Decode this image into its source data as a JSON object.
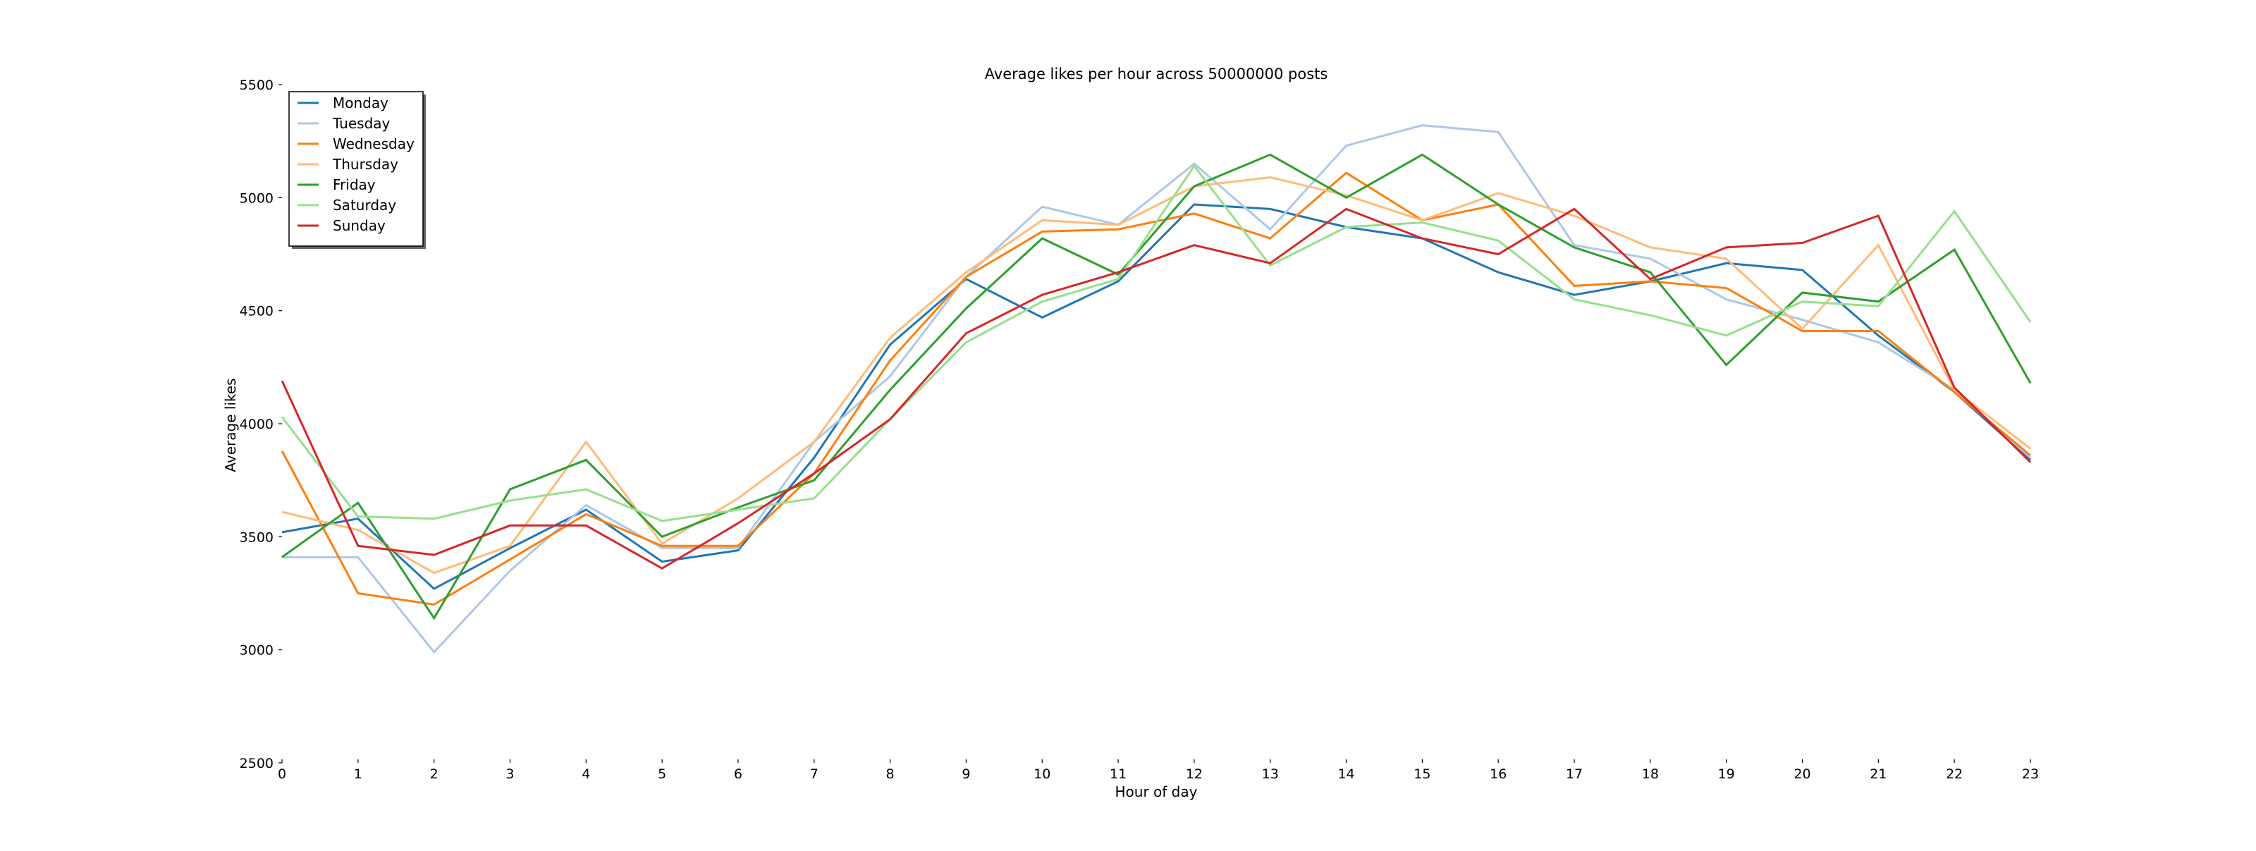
{
  "chart_data": {
    "type": "line",
    "title": "Average likes per hour across 50000000 posts",
    "xlabel": "Hour of day",
    "ylabel": "Average likes",
    "x": [
      0,
      1,
      2,
      3,
      4,
      5,
      6,
      7,
      8,
      9,
      10,
      11,
      12,
      13,
      14,
      15,
      16,
      17,
      18,
      19,
      20,
      21,
      22,
      23
    ],
    "xlim": [
      0,
      23
    ],
    "ylim": [
      2500,
      5500
    ],
    "yticks": [
      2500,
      3000,
      3500,
      4000,
      4500,
      5000,
      5500
    ],
    "grid": false,
    "legend_position": "top-left",
    "series": [
      {
        "name": "Monday",
        "color": "#1f77b4",
        "values": [
          3520,
          3580,
          3270,
          3450,
          3620,
          3390,
          3440,
          3850,
          4350,
          4640,
          4470,
          4630,
          4970,
          4950,
          4870,
          4820,
          4670,
          4570,
          4630,
          4710,
          4680,
          4390,
          4140,
          3840
        ]
      },
      {
        "name": "Tuesday",
        "color": "#aec7e8",
        "values": [
          3410,
          3410,
          2990,
          3350,
          3640,
          3450,
          3450,
          3920,
          4210,
          4650,
          4960,
          4880,
          5150,
          4860,
          5230,
          5320,
          5290,
          4790,
          4730,
          4550,
          4460,
          4360,
          4150,
          3850
        ]
      },
      {
        "name": "Wednesday",
        "color": "#ff7f0e",
        "values": [
          3880,
          3250,
          3200,
          3400,
          3600,
          3460,
          3460,
          3780,
          4280,
          4650,
          4850,
          4860,
          4930,
          4820,
          5110,
          4900,
          4970,
          4610,
          4630,
          4600,
          4410,
          4410,
          4140,
          3860
        ]
      },
      {
        "name": "Thursday",
        "color": "#ffbb78",
        "values": [
          3610,
          3530,
          3340,
          3460,
          3920,
          3470,
          3670,
          3920,
          4380,
          4670,
          4900,
          4880,
          5050,
          5090,
          5010,
          4900,
          5020,
          4920,
          4780,
          4730,
          4420,
          4790,
          4150,
          3890
        ]
      },
      {
        "name": "Friday",
        "color": "#2ca02c",
        "values": [
          3410,
          3650,
          3140,
          3710,
          3840,
          3500,
          3630,
          3750,
          4150,
          4510,
          4820,
          4660,
          5050,
          5190,
          5000,
          5190,
          4970,
          4780,
          4670,
          4260,
          4580,
          4540,
          4770,
          4180
        ]
      },
      {
        "name": "Saturday",
        "color": "#98df8a",
        "values": [
          4030,
          3590,
          3580,
          3660,
          3710,
          3570,
          3620,
          3670,
          4020,
          4360,
          4540,
          4640,
          5140,
          4700,
          4870,
          4890,
          4810,
          4550,
          4480,
          4390,
          4540,
          4520,
          4940,
          4450
        ]
      },
      {
        "name": "Sunday",
        "color": "#d62728",
        "values": [
          4190,
          3460,
          3420,
          3550,
          3550,
          3360,
          3560,
          3780,
          4020,
          4400,
          4570,
          4670,
          4790,
          4710,
          4950,
          4820,
          4750,
          4950,
          4640,
          4780,
          4800,
          4920,
          4160,
          3830
        ]
      }
    ]
  }
}
